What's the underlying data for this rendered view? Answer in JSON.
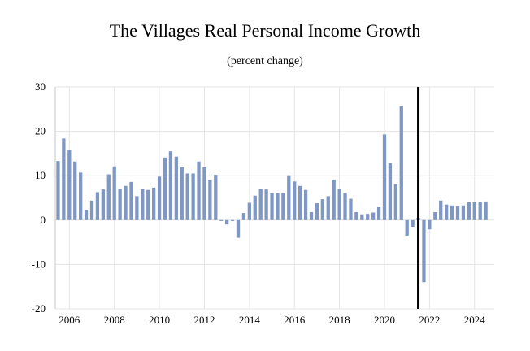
{
  "chart_data": {
    "type": "bar",
    "title": "The Villages Real Personal Income Growth",
    "subtitle": "(percent change)",
    "xlabel": "",
    "ylabel": "",
    "ylim": [
      -20,
      30
    ],
    "yticks": [
      30,
      20,
      10,
      0,
      -10,
      -20
    ],
    "ytick_labels": [
      "30",
      "20",
      "10",
      "0",
      "-10",
      "-20"
    ],
    "xticks": [
      2006,
      2008,
      2010,
      2012,
      2014,
      2016,
      2018,
      2020,
      2022,
      2024
    ],
    "xtick_labels": [
      "2006",
      "2008",
      "2010",
      "2012",
      "2014",
      "2016",
      "2018",
      "2020",
      "2022",
      "2024"
    ],
    "x_start": 2005.375,
    "x_end": 2024.875,
    "grid": true,
    "bar_color": "#7f97c4",
    "forecast_line_color": "#000000",
    "forecast_line_x": 2021.5,
    "series": [
      {
        "x_start": 2005.5,
        "step": 0.25,
        "values": [
          13.3,
          18.4,
          15.8,
          13.2,
          10.7,
          2.3,
          4.4,
          6.3,
          6.9,
          10.3,
          12.1,
          7.1,
          7.7,
          8.6,
          5.4,
          7.0,
          6.8,
          7.3,
          9.8,
          14.1,
          15.5,
          14.3,
          11.9,
          10.5,
          10.5,
          13.2,
          11.9,
          9.0,
          10.2,
          -0.2,
          -1.0,
          -0.2,
          -4.0,
          1.6,
          3.9,
          5.5,
          7.1,
          6.9,
          6.1,
          6.1,
          6.0,
          10.1,
          8.7,
          7.7,
          6.8,
          1.8,
          3.8,
          4.7,
          5.4,
          9.1,
          7.1,
          6.1,
          4.8,
          1.8,
          1.3,
          1.4,
          1.7,
          2.9,
          19.3,
          12.8,
          8.1,
          25.6,
          -3.5,
          -1.5,
          0.5,
          -14.0,
          -2.1,
          1.8,
          4.4,
          3.5,
          3.3,
          3.1,
          3.3,
          4.0,
          4.0,
          4.1,
          4.2
        ]
      }
    ]
  }
}
